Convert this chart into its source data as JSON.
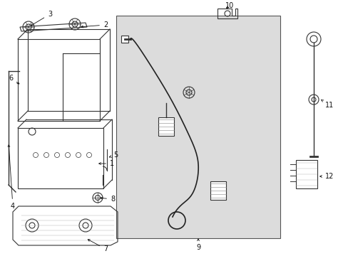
{
  "bg_color": "#ffffff",
  "panel_bg": "#dcdcdc",
  "line_color": "#333333",
  "fig_w": 4.89,
  "fig_h": 3.6,
  "dpi": 100
}
